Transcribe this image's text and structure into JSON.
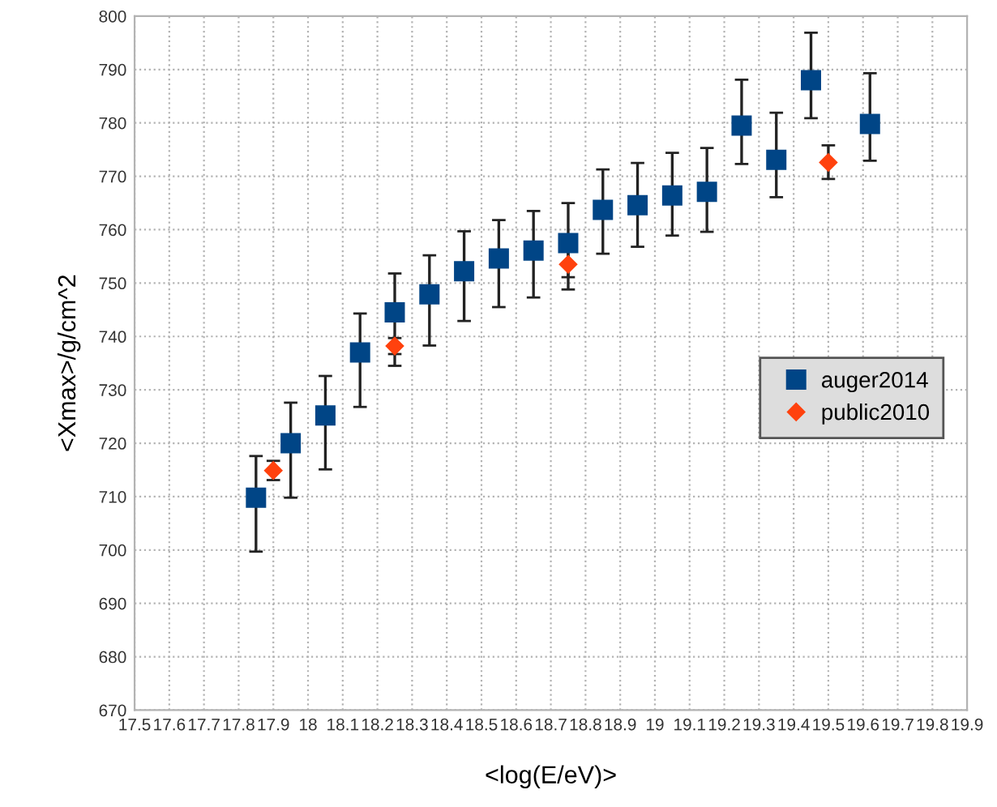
{
  "chart_data": {
    "type": "scatter",
    "xlabel": "<log(E/eV)>",
    "ylabel": "<Xmax>/g/cm^2",
    "xlim": [
      17.5,
      19.9
    ],
    "xticks": [
      17.5,
      17.6,
      17.7,
      17.8,
      17.9,
      {
        "value": 18,
        "label": "18"
      },
      18.1,
      18.2,
      18.3,
      18.4,
      18.5,
      18.6,
      18.7,
      18.8,
      18.9,
      {
        "value": 19,
        "label": "19"
      },
      19.1,
      19.2,
      19.3,
      19.4,
      19.5,
      19.6,
      19.7,
      19.8,
      19.9
    ],
    "ylim": [
      670,
      800
    ],
    "yticks": [
      670,
      680,
      690,
      700,
      710,
      720,
      730,
      740,
      750,
      760,
      770,
      780,
      790,
      800
    ],
    "grid": true,
    "legend": "right",
    "line_style": "dotted",
    "series": [
      {
        "name": "auger2014",
        "color": "#004586",
        "marker": "square",
        "x": [
          17.85,
          17.95,
          18.05,
          18.15,
          18.25,
          18.35,
          18.45,
          18.55,
          18.65,
          18.75,
          18.85,
          18.95,
          19.05,
          19.15,
          19.25,
          19.35,
          19.45,
          19.62
        ],
        "values": [
          709.8,
          720,
          725.2,
          737,
          744.5,
          747.9,
          752.2,
          754.6,
          756.1,
          757.5,
          763.7,
          764.6,
          766.4,
          767.1,
          779.5,
          773.1,
          788,
          779.8
        ],
        "errors": [
          [
            699.7,
            717.6
          ],
          [
            709.8,
            727.6
          ],
          [
            715.1,
            732.6
          ],
          [
            726.8,
            744.3
          ],
          [
            734.5,
            751.8
          ],
          [
            738.3,
            755.2
          ],
          [
            742.9,
            759.7
          ],
          [
            745.5,
            761.8
          ],
          [
            747.3,
            763.5
          ],
          [
            748.8,
            765
          ],
          [
            755.5,
            771.3
          ],
          [
            756.8,
            772.5
          ],
          [
            758.9,
            774.4
          ],
          [
            759.6,
            775.3
          ],
          [
            772.3,
            788.1
          ],
          [
            766.1,
            781.9
          ],
          [
            780.9,
            796.9
          ],
          [
            772.9,
            789.3
          ]
        ]
      },
      {
        "name": "public2010",
        "color": "#ff420e",
        "marker": "diamond",
        "x": [
          17.9,
          18.25,
          18.75,
          19.5
        ],
        "values": [
          714.9,
          738.2,
          753.5,
          772.6
        ],
        "errors": [
          [
            713.1,
            716.7
          ],
          [
            736.7,
            739.7
          ],
          [
            751.1,
            755.9
          ],
          [
            769.5,
            775.8
          ]
        ]
      }
    ]
  }
}
